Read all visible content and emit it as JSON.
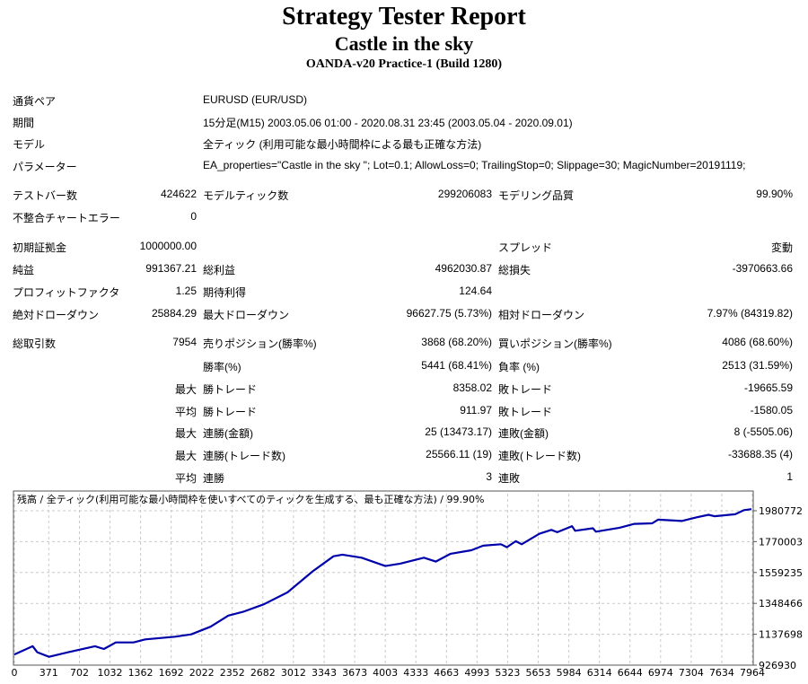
{
  "header": {
    "title": "Strategy Tester Report",
    "subtitle": "Castle in the sky",
    "server": "OANDA-v20 Practice-1 (Build 1280)"
  },
  "report": {
    "rows": [
      {
        "l1": "通貨ペア",
        "l2": "EURUSD (EUR/USD)"
      },
      {
        "l1": "期間",
        "l2": "15分足(M15) 2003.05.06 01:00 - 2020.08.31 23:45 (2003.05.04 - 2020.09.01)"
      },
      {
        "l1": "モデル",
        "l2": "全ティック (利用可能な最小時間枠による最も正確な方法)"
      },
      {
        "l1": "パラメーター",
        "l2": "EA_properties=\"Castle in the sky \"; Lot=0.1; AllowLoss=0; TrailingStop=0; Slippage=30; MagicNumber=20191119;"
      },
      {
        "l1": "テストバー数",
        "v1": "424622",
        "l2": "モデルティック数",
        "v2": "299206083",
        "l3": "モデリング品質",
        "v3": "99.90%"
      },
      {
        "l1": "不整合チャートエラー",
        "v1": "0"
      },
      {
        "l1": "初期証拠金",
        "v1": "1000000.00",
        "l3": "スプレッド",
        "v3": "変動"
      },
      {
        "l1": "純益",
        "v1": "991367.21",
        "l2": "総利益",
        "v2": "4962030.87",
        "l3": "総損失",
        "v3": "-3970663.66"
      },
      {
        "l1": "プロフィットファクタ",
        "v1": "1.25",
        "l2": "期待利得",
        "v2": "124.64"
      },
      {
        "l1": "絶対ドローダウン",
        "v1": "25884.29",
        "l2": "最大ドローダウン",
        "v2": "96627.75 (5.73%)",
        "l3": "相対ドローダウン",
        "v3": "7.97% (84319.82)"
      },
      {
        "l1": "総取引数",
        "v1": "7954",
        "l2": "売りポジション(勝率%)",
        "v2": "3868 (68.20%)",
        "l3": "買いポジション(勝率%)",
        "v3": "4086 (68.60%)"
      },
      {
        "l2": "勝率(%)",
        "v2": "5441 (68.41%)",
        "l3": "負率 (%)",
        "v3": "2513 (31.59%)"
      },
      {
        "v1": "最大",
        "l2": "勝トレード",
        "v2": "8358.02",
        "l3": "敗トレード",
        "v3": "-19665.59"
      },
      {
        "v1": "平均",
        "l2": "勝トレード",
        "v2": "911.97",
        "l3": "敗トレード",
        "v3": "-1580.05"
      },
      {
        "v1": "最大",
        "l2": "連勝(金額)",
        "v2": "25 (13473.17)",
        "l3": "連敗(金額)",
        "v3": "8 (-5505.06)"
      },
      {
        "v1": "最大",
        "l2": "連勝(トレード数)",
        "v2": "25566.11 (19)",
        "l3": "連敗(トレード数)",
        "v3": "-33688.35 (4)"
      },
      {
        "v1": "平均",
        "l2": "連勝",
        "v2": "3",
        "l3": "連敗",
        "v3": "1"
      }
    ]
  },
  "chart_data": {
    "type": "line",
    "title": "残高 / 全ティック(利用可能な最小時間枠を使いすべてのティックを生成する、最も正確な方法) / 99.90%",
    "xticks": [
      "0",
      "371",
      "702",
      "1032",
      "1362",
      "1692",
      "2022",
      "2352",
      "2682",
      "3012",
      "3343",
      "3673",
      "4003",
      "4333",
      "4663",
      "4993",
      "5323",
      "5653",
      "5984",
      "6314",
      "6644",
      "6974",
      "7304",
      "7634",
      "7964"
    ],
    "yticks": [
      "1980772",
      "1770003",
      "1559235",
      "1348466",
      "1137698",
      "926930"
    ],
    "xlim": [
      0,
      7964
    ],
    "ylim": [
      926930,
      2097000
    ],
    "grid": true,
    "line_color": "#0000aa",
    "x": [
      0,
      198,
      247,
      374,
      582,
      870,
      966,
      1094,
      1286,
      1413,
      1733,
      1909,
      2117,
      2309,
      2468,
      2692,
      2948,
      3220,
      3444,
      3540,
      3748,
      4003,
      4163,
      4420,
      4548,
      4708,
      4931,
      5059,
      5251,
      5315,
      5411,
      5475,
      5667,
      5795,
      5859,
      6019,
      6051,
      6243,
      6275,
      6531,
      6691,
      6883,
      6947,
      7203,
      7363,
      7491,
      7555,
      7779,
      7875,
      7954
    ],
    "y": [
      1000000,
      1056000,
      1015000,
      984000,
      1015000,
      1056000,
      1037000,
      1082000,
      1082000,
      1103000,
      1121000,
      1137000,
      1189000,
      1265000,
      1291000,
      1342000,
      1424000,
      1568000,
      1670000,
      1681000,
      1660000,
      1603000,
      1620000,
      1660000,
      1634000,
      1687000,
      1711000,
      1742000,
      1752000,
      1732000,
      1773000,
      1752000,
      1824000,
      1850000,
      1834000,
      1875000,
      1844000,
      1861000,
      1838000,
      1865000,
      1891000,
      1895000,
      1920000,
      1911000,
      1936000,
      1953000,
      1943000,
      1957000,
      1985000,
      1991367
    ]
  }
}
